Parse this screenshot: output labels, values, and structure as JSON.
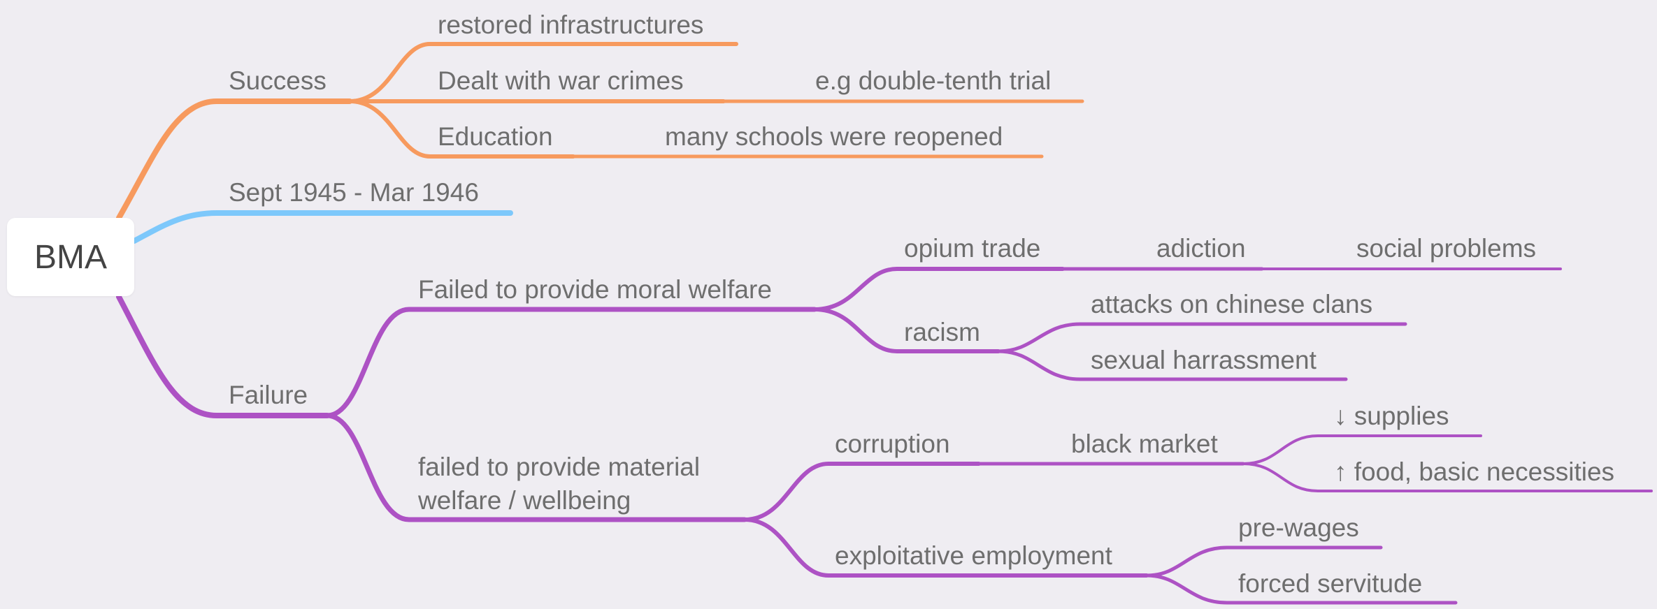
{
  "colors": {
    "background": "#efedf2",
    "success_branch": "#f79a5e",
    "date_branch": "#7dc8fb",
    "failure_branch": "#ad52c4",
    "text": "#6e6e6e",
    "root_text": "#444444"
  },
  "mindmap": {
    "root": "BMA",
    "success": {
      "label": "Success",
      "infra": "restored infrastructures",
      "war_crimes": "Dealt with war crimes",
      "war_crimes_example": "e.g double-tenth trial",
      "education": "Education",
      "education_detail": "many schools were reopened"
    },
    "period": "Sept 1945 - Mar 1946",
    "failure": {
      "label": "Failure",
      "moral": {
        "label": "Failed to provide moral welfare",
        "opium": "opium trade",
        "addiction": "adiction",
        "social": "social problems",
        "racism": "racism",
        "attacks": "attacks on chinese clans",
        "harassment": "sexual harrassment"
      },
      "material": {
        "line1": "failed to provide material",
        "line2": "welfare / wellbeing",
        "corruption": "corruption",
        "black_market": "black market",
        "supplies": "↓ supplies",
        "food": "↑ food, basic necessities",
        "exploitative": "exploitative employment",
        "pre_wages": "pre-wages",
        "forced": "forced servitude"
      }
    }
  }
}
